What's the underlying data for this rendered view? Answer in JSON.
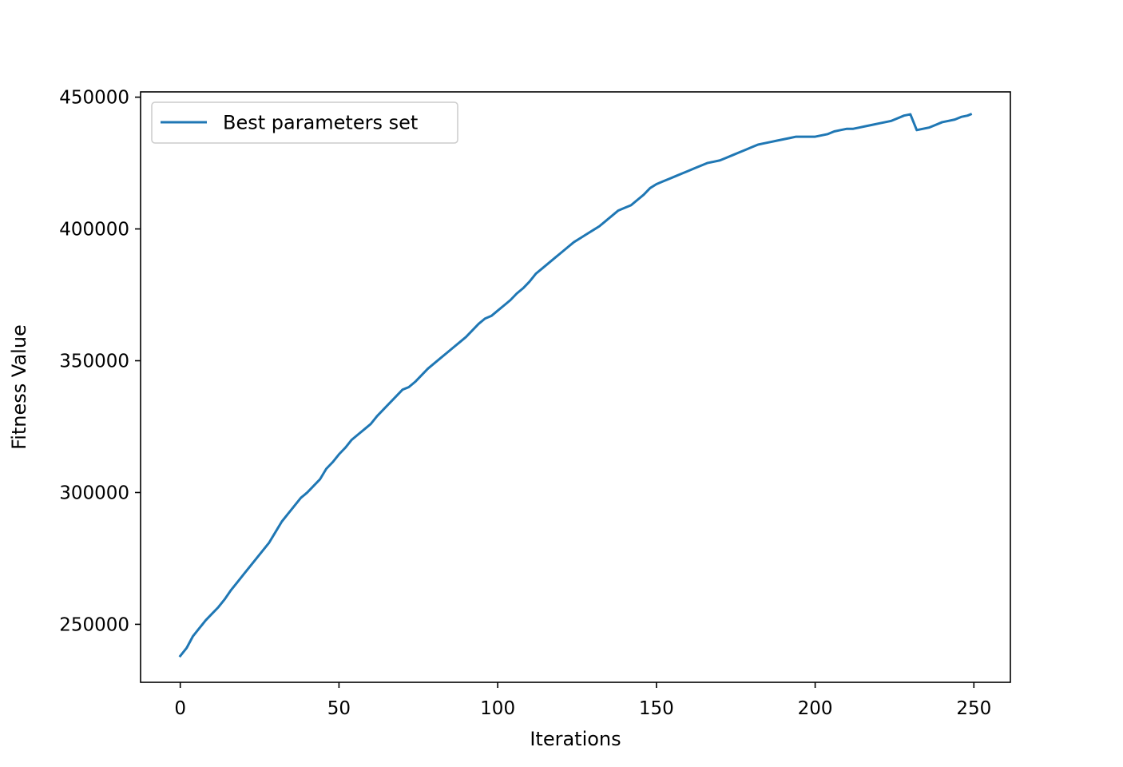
{
  "chart_data": {
    "type": "line",
    "title": "",
    "xlabel": "Iterations",
    "ylabel": "Fitness Value",
    "xlim": [
      -12.5,
      261.5
    ],
    "ylim": [
      228000,
      452000
    ],
    "xticks": [
      0,
      50,
      100,
      150,
      200,
      250
    ],
    "yticks": [
      250000,
      300000,
      350000,
      400000,
      450000
    ],
    "grid": false,
    "legend_position": "upper-left",
    "series": [
      {
        "name": "Best parameters set",
        "color": "#1f77b4",
        "x": [
          0,
          2,
          4,
          6,
          8,
          10,
          12,
          14,
          16,
          18,
          20,
          22,
          24,
          26,
          28,
          30,
          32,
          34,
          36,
          38,
          40,
          42,
          44,
          46,
          48,
          50,
          52,
          54,
          56,
          58,
          60,
          62,
          64,
          66,
          68,
          70,
          72,
          74,
          76,
          78,
          80,
          82,
          84,
          86,
          88,
          90,
          92,
          94,
          96,
          98,
          100,
          102,
          104,
          106,
          108,
          110,
          112,
          114,
          116,
          118,
          120,
          122,
          124,
          126,
          128,
          130,
          132,
          134,
          136,
          138,
          140,
          142,
          144,
          146,
          148,
          150,
          152,
          154,
          156,
          158,
          160,
          162,
          164,
          166,
          168,
          170,
          172,
          174,
          176,
          178,
          180,
          182,
          184,
          186,
          188,
          190,
          192,
          194,
          196,
          198,
          200,
          202,
          204,
          206,
          208,
          210,
          212,
          214,
          216,
          218,
          220,
          222,
          224,
          226,
          228,
          230,
          232,
          234,
          236,
          238,
          240,
          242,
          244,
          246,
          248,
          249
        ],
        "values": [
          238000,
          241000,
          245500,
          248500,
          251500,
          254000,
          256500,
          259500,
          263000,
          266000,
          269000,
          272000,
          275000,
          278000,
          281000,
          285000,
          289000,
          292000,
          295000,
          298000,
          300000,
          302500,
          305000,
          309000,
          311500,
          314500,
          317000,
          320000,
          322000,
          324000,
          326000,
          329000,
          331500,
          334000,
          336500,
          339000,
          340000,
          342000,
          344500,
          347000,
          349000,
          351000,
          353000,
          355000,
          357000,
          359000,
          361500,
          364000,
          366000,
          367000,
          369000,
          371000,
          373000,
          375500,
          377500,
          380000,
          383000,
          385000,
          387000,
          389000,
          391000,
          393000,
          395000,
          396500,
          398000,
          399500,
          401000,
          403000,
          405000,
          407000,
          408000,
          409000,
          411000,
          413000,
          415500,
          417000,
          418000,
          419000,
          420000,
          421000,
          422000,
          423000,
          424000,
          425000,
          425500,
          426000,
          427000,
          428000,
          429000,
          430000,
          431000,
          432000,
          432500,
          433000,
          433500,
          434000,
          434500,
          435000,
          435000,
          435000,
          435000,
          435500,
          436000,
          437000,
          437500,
          438000,
          438000,
          438500,
          439000,
          439500,
          440000,
          440500,
          441000,
          442000,
          443000,
          443500,
          437500,
          438000,
          438500,
          439500,
          440500,
          441000,
          441500,
          442500,
          443000,
          443500
        ]
      }
    ]
  }
}
